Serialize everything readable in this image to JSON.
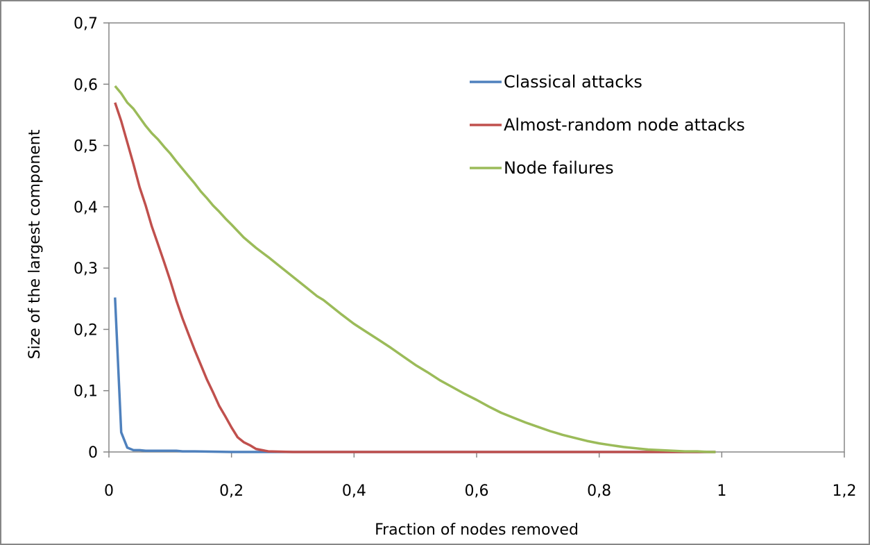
{
  "chart_data": {
    "type": "line",
    "title": "",
    "xlabel": "Fraction of nodes removed",
    "ylabel": "Size of the largest component",
    "xlim": [
      0,
      1.2
    ],
    "ylim": [
      0,
      0.7
    ],
    "x_ticks": [
      "0",
      "0,2",
      "0,4",
      "0,6",
      "0,8",
      "1",
      "1,2"
    ],
    "y_ticks": [
      "0",
      "0,1",
      "0,2",
      "0,3",
      "0,4",
      "0,5",
      "0,6",
      "0,7"
    ],
    "grid": false,
    "legend_position": "top-right",
    "series": [
      {
        "name": "Classical attacks",
        "color": "#4f81bd",
        "points": [
          [
            0.01,
            0.252
          ],
          [
            0.02,
            0.032
          ],
          [
            0.03,
            0.007
          ],
          [
            0.04,
            0.003
          ],
          [
            0.05,
            0.003
          ],
          [
            0.06,
            0.002
          ],
          [
            0.08,
            0.002
          ],
          [
            0.11,
            0.002
          ],
          [
            0.12,
            0.001
          ],
          [
            0.14,
            0.001
          ],
          [
            0.2,
            0.0
          ],
          [
            0.3,
            0.0
          ],
          [
            0.4,
            0.0
          ],
          [
            0.5,
            0.0
          ],
          [
            0.6,
            0.0
          ],
          [
            0.7,
            0.0
          ],
          [
            0.8,
            0.0
          ],
          [
            0.9,
            0.0
          ],
          [
            0.99,
            0.0
          ]
        ]
      },
      {
        "name": "Almost-random node attacks",
        "color": "#c0504d",
        "points": [
          [
            0.01,
            0.57
          ],
          [
            0.02,
            0.54
          ],
          [
            0.03,
            0.505
          ],
          [
            0.04,
            0.47
          ],
          [
            0.05,
            0.432
          ],
          [
            0.06,
            0.402
          ],
          [
            0.07,
            0.368
          ],
          [
            0.08,
            0.339
          ],
          [
            0.09,
            0.31
          ],
          [
            0.1,
            0.28
          ],
          [
            0.11,
            0.247
          ],
          [
            0.12,
            0.218
          ],
          [
            0.13,
            0.192
          ],
          [
            0.14,
            0.166
          ],
          [
            0.15,
            0.142
          ],
          [
            0.16,
            0.118
          ],
          [
            0.17,
            0.097
          ],
          [
            0.18,
            0.075
          ],
          [
            0.19,
            0.058
          ],
          [
            0.2,
            0.04
          ],
          [
            0.21,
            0.024
          ],
          [
            0.22,
            0.016
          ],
          [
            0.23,
            0.011
          ],
          [
            0.24,
            0.005
          ],
          [
            0.25,
            0.003
          ],
          [
            0.26,
            0.001
          ],
          [
            0.3,
            0.0
          ],
          [
            0.4,
            0.0
          ],
          [
            0.5,
            0.0
          ],
          [
            0.6,
            0.0
          ],
          [
            0.7,
            0.0
          ],
          [
            0.8,
            0.0
          ],
          [
            0.9,
            0.0
          ],
          [
            0.99,
            0.0
          ]
        ]
      },
      {
        "name": "Node failures",
        "color": "#9bbb59",
        "points": [
          [
            0.01,
            0.597
          ],
          [
            0.02,
            0.585
          ],
          [
            0.03,
            0.57
          ],
          [
            0.04,
            0.56
          ],
          [
            0.05,
            0.546
          ],
          [
            0.06,
            0.532
          ],
          [
            0.07,
            0.52
          ],
          [
            0.08,
            0.51
          ],
          [
            0.09,
            0.498
          ],
          [
            0.1,
            0.487
          ],
          [
            0.11,
            0.474
          ],
          [
            0.12,
            0.462
          ],
          [
            0.13,
            0.45
          ],
          [
            0.14,
            0.438
          ],
          [
            0.15,
            0.425
          ],
          [
            0.16,
            0.414
          ],
          [
            0.17,
            0.402
          ],
          [
            0.18,
            0.392
          ],
          [
            0.19,
            0.381
          ],
          [
            0.2,
            0.371
          ],
          [
            0.22,
            0.35
          ],
          [
            0.24,
            0.333
          ],
          [
            0.26,
            0.318
          ],
          [
            0.28,
            0.302
          ],
          [
            0.3,
            0.286
          ],
          [
            0.32,
            0.27
          ],
          [
            0.34,
            0.254
          ],
          [
            0.35,
            0.248
          ],
          [
            0.36,
            0.24
          ],
          [
            0.38,
            0.224
          ],
          [
            0.4,
            0.209
          ],
          [
            0.42,
            0.196
          ],
          [
            0.44,
            0.183
          ],
          [
            0.46,
            0.17
          ],
          [
            0.48,
            0.156
          ],
          [
            0.5,
            0.142
          ],
          [
            0.52,
            0.13
          ],
          [
            0.54,
            0.117
          ],
          [
            0.56,
            0.106
          ],
          [
            0.58,
            0.095
          ],
          [
            0.6,
            0.085
          ],
          [
            0.62,
            0.074
          ],
          [
            0.64,
            0.064
          ],
          [
            0.66,
            0.056
          ],
          [
            0.68,
            0.048
          ],
          [
            0.7,
            0.041
          ],
          [
            0.72,
            0.034
          ],
          [
            0.73,
            0.031
          ],
          [
            0.74,
            0.028
          ],
          [
            0.76,
            0.023
          ],
          [
            0.78,
            0.018
          ],
          [
            0.8,
            0.014
          ],
          [
            0.82,
            0.011
          ],
          [
            0.84,
            0.008
          ],
          [
            0.86,
            0.006
          ],
          [
            0.88,
            0.004
          ],
          [
            0.9,
            0.003
          ],
          [
            0.92,
            0.002
          ],
          [
            0.94,
            0.001
          ],
          [
            0.96,
            0.001
          ],
          [
            0.98,
            0.0
          ],
          [
            0.99,
            0.0
          ]
        ]
      }
    ]
  }
}
